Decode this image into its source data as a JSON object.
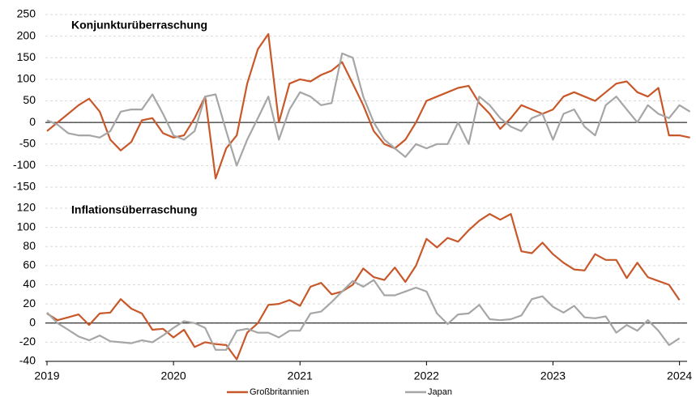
{
  "chart_data": [
    {
      "type": "line",
      "title": "Konjunkturüberraschung",
      "x": [
        2019,
        2019.083,
        2019.167,
        2019.25,
        2019.333,
        2019.417,
        2019.5,
        2019.583,
        2019.667,
        2019.75,
        2019.833,
        2019.917,
        2020,
        2020.083,
        2020.167,
        2020.25,
        2020.333,
        2020.417,
        2020.5,
        2020.583,
        2020.667,
        2020.75,
        2020.833,
        2020.917,
        2021,
        2021.083,
        2021.167,
        2021.25,
        2021.333,
        2021.417,
        2021.5,
        2021.583,
        2021.667,
        2021.75,
        2021.833,
        2021.917,
        2022,
        2022.083,
        2022.167,
        2022.25,
        2022.333,
        2022.417,
        2022.5,
        2022.583,
        2022.667,
        2022.75,
        2022.833,
        2022.917,
        2023,
        2023.083,
        2023.167,
        2023.25,
        2023.333,
        2023.417,
        2023.5,
        2023.583,
        2023.667,
        2023.75,
        2023.833,
        2023.917,
        2024,
        2024.083
      ],
      "series": [
        {
          "color": "#c8582a",
          "values": [
            -20,
            0,
            20,
            40,
            55,
            25,
            -40,
            -65,
            -45,
            5,
            10,
            -25,
            -35,
            -30,
            10,
            60,
            -130,
            -60,
            -30,
            90,
            170,
            205,
            0,
            90,
            100,
            95,
            110,
            120,
            140,
            90,
            40,
            -20,
            -50,
            -60,
            -40,
            0,
            50,
            60,
            70,
            80,
            85,
            45,
            20,
            -15,
            10,
            40,
            30,
            20,
            30,
            60,
            70,
            60,
            50,
            70,
            90,
            95,
            70,
            60,
            80,
            -30,
            -30,
            -35
          ]
        },
        {
          "color": "#a6a6a6",
          "values": [
            5,
            -5,
            -25,
            -30,
            -30,
            -35,
            -20,
            25,
            30,
            30,
            65,
            20,
            -30,
            -40,
            -20,
            60,
            65,
            -20,
            -100,
            -40,
            10,
            60,
            -40,
            30,
            70,
            60,
            40,
            45,
            160,
            150,
            60,
            0,
            -40,
            -60,
            -80,
            -50,
            -60,
            -50,
            -50,
            0,
            -50,
            60,
            40,
            10,
            -10,
            -20,
            10,
            20,
            -40,
            20,
            30,
            -10,
            -30,
            40,
            60,
            30,
            0,
            40,
            20,
            10,
            40,
            25
          ]
        }
      ],
      "xlim": [
        2019,
        2024.06
      ],
      "ylim": [
        -150,
        250
      ],
      "yticks": [
        -150,
        -100,
        -50,
        0,
        50,
        100,
        150,
        200,
        250
      ],
      "grid": true
    },
    {
      "type": "line",
      "title": "Inflationsüberraschung",
      "x": [
        2019,
        2019.083,
        2019.167,
        2019.25,
        2019.333,
        2019.417,
        2019.5,
        2019.583,
        2019.667,
        2019.75,
        2019.833,
        2019.917,
        2020,
        2020.083,
        2020.167,
        2020.25,
        2020.333,
        2020.417,
        2020.5,
        2020.583,
        2020.667,
        2020.75,
        2020.833,
        2020.917,
        2021,
        2021.083,
        2021.167,
        2021.25,
        2021.333,
        2021.417,
        2021.5,
        2021.583,
        2021.667,
        2021.75,
        2021.833,
        2021.917,
        2022,
        2022.083,
        2022.167,
        2022.25,
        2022.333,
        2022.417,
        2022.5,
        2022.583,
        2022.667,
        2022.75,
        2022.833,
        2022.917,
        2023,
        2023.083,
        2023.167,
        2023.25,
        2023.333,
        2023.417,
        2023.5,
        2023.583,
        2023.667,
        2023.75,
        2023.833,
        2023.917,
        2024,
        2024.083
      ],
      "series": [
        {
          "name": "Großbritannien",
          "color": "#c8582a",
          "values": [
            10,
            3,
            6,
            9,
            -2,
            10,
            11,
            25,
            15,
            10,
            -7,
            -6,
            -15,
            -7,
            -25,
            -20,
            -22,
            -23,
            -38,
            -10,
            0,
            19,
            20,
            24,
            18,
            38,
            42,
            30,
            33,
            40,
            57,
            48,
            45,
            58,
            43,
            60,
            88,
            79,
            89,
            85,
            97,
            107,
            114,
            108,
            114,
            75,
            73,
            84,
            72,
            63,
            56,
            55,
            72,
            66,
            66,
            47,
            63,
            48,
            44,
            40,
            24,
            null
          ]
        },
        {
          "name": "Japan",
          "color": "#a6a6a6",
          "values": [
            11,
            0,
            -7,
            -14,
            -18,
            -13,
            -19,
            -20,
            -21,
            -18,
            -20,
            -13,
            -5,
            2,
            0,
            -5,
            -28,
            -28,
            -8,
            -6,
            -10,
            -10,
            -15,
            -8,
            -8,
            10,
            12,
            22,
            33,
            44,
            38,
            45,
            29,
            29,
            33,
            37,
            33,
            10,
            -1,
            9,
            10,
            19,
            4,
            3,
            4,
            8,
            25,
            28,
            17,
            11,
            18,
            6,
            5,
            7,
            -10,
            -2,
            -8,
            3,
            -8,
            -23,
            -16,
            null
          ]
        }
      ],
      "xlim": [
        2019,
        2024.06
      ],
      "ylim": [
        -40,
        120
      ],
      "yticks": [
        -40,
        -20,
        0,
        20,
        40,
        60,
        80,
        100,
        120
      ],
      "xticks": [
        2019,
        2020,
        2021,
        2022,
        2023,
        2024
      ],
      "grid": true,
      "legend": "bottom"
    }
  ]
}
